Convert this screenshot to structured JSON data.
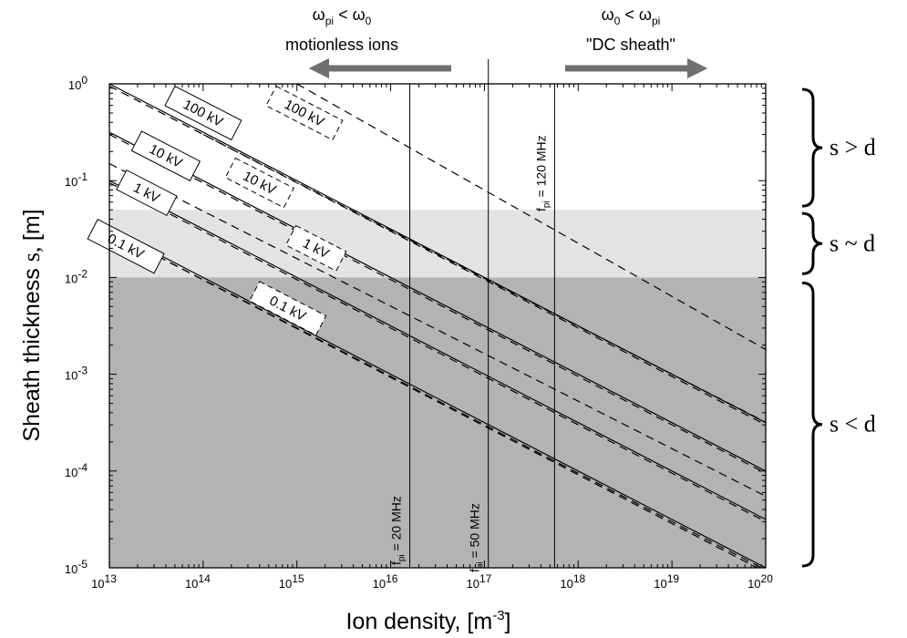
{
  "chart_data": {
    "type": "line",
    "xlabel": "Ion density, [m⁻³]",
    "ylabel": "Sheath thickness",
    "ylabel_symbol": "s,",
    "ylabel_unit": "[m]",
    "x_scale": "log",
    "y_scale": "log",
    "xlim": [
      10000000000000.0,
      1e+20
    ],
    "ylim": [
      1e-05,
      1
    ],
    "x_ticks": [
      "10",
      "10",
      "10",
      "10",
      "10",
      "10",
      "10",
      "10"
    ],
    "x_tick_exponents": [
      "13",
      "14",
      "15",
      "16",
      "17",
      "18",
      "19",
      "20"
    ],
    "y_ticks": [
      "10",
      "10",
      "10",
      "10",
      "10",
      "10"
    ],
    "y_tick_exponents": [
      "0",
      "-1",
      "-2",
      "-3",
      "-4",
      "-5"
    ],
    "regions": [
      {
        "label": "s > d",
        "y_from": 0.05,
        "y_to": 1.0,
        "color": "#ffffff"
      },
      {
        "label": "s ~ d",
        "y_from": 0.01,
        "y_to": 0.05,
        "color": "#e3e3e3"
      },
      {
        "label": "s < d",
        "y_from": 1e-05,
        "y_to": 0.01,
        "color": "#b3b3b3"
      }
    ],
    "series": [
      {
        "name": "100 kV",
        "style": "solid",
        "points": [
          [
            10000000000000.0,
            1.0
          ],
          [
            1e+20,
            0.000316
          ]
        ]
      },
      {
        "name": "10 kV",
        "style": "solid",
        "points": [
          [
            10000000000000.0,
            0.316
          ],
          [
            1e+20,
            0.0001
          ]
        ]
      },
      {
        "name": "1 kV",
        "style": "solid",
        "points": [
          [
            10000000000000.0,
            0.1
          ],
          [
            1e+20,
            3.16e-05
          ]
        ]
      },
      {
        "name": "0.1 kV",
        "style": "solid",
        "points": [
          [
            10000000000000.0,
            0.0316
          ],
          [
            1e+20,
            1e-05
          ]
        ]
      },
      {
        "name": "100 kV",
        "style": "dashed",
        "points": [
          [
            1000000000000000.0,
            1.0
          ],
          [
            1e+20,
            0.0018
          ]
        ]
      },
      {
        "name": "100 kV",
        "style": "dashed",
        "points": [
          [
            10000000000000.0,
            0.95
          ],
          [
            1e+20,
            0.0003
          ]
        ]
      },
      {
        "name": "10 kV",
        "style": "dashed",
        "points": [
          [
            100000000000000.0,
            0.3
          ],
          [
            1e+20,
            0.00032
          ]
        ]
      },
      {
        "name": "10 kV",
        "style": "dashed",
        "points": [
          [
            10000000000000.0,
            0.3
          ],
          [
            1e+20,
            9.5e-05
          ]
        ]
      },
      {
        "name": "1 kV",
        "style": "dashed",
        "points": [
          [
            10000000000000.0,
            0.15
          ],
          [
            1e+20,
            5.5e-05
          ]
        ]
      },
      {
        "name": "1 kV",
        "style": "dashed",
        "points": [
          [
            10000000000000.0,
            0.095
          ],
          [
            1e+20,
            3e-05
          ]
        ]
      },
      {
        "name": "0.1 kV",
        "style": "dashed",
        "points": [
          [
            10000000000000.0,
            0.03
          ],
          [
            1e+20,
            9e-06
          ]
        ]
      },
      {
        "name": "0.1 kV",
        "style": "dashed",
        "points": [
          [
            10000000000000.0,
            0.03
          ],
          [
            1e+20,
            9.5e-06
          ]
        ]
      }
    ],
    "line_labels": [
      {
        "text": "100 kV",
        "border": "solid",
        "x": 100000000000000.0,
        "y": 0.5
      },
      {
        "text": "10 kV",
        "border": "solid",
        "x": 40000000000000.0,
        "y": 0.18
      },
      {
        "text": "1 kV",
        "border": "solid",
        "x": 25000000000000.0,
        "y": 0.075
      },
      {
        "text": "0.1 kV",
        "border": "solid",
        "x": 15000000000000.0,
        "y": 0.021
      },
      {
        "text": "100 kV",
        "border": "dashed",
        "x": 1200000000000000.0,
        "y": 0.5
      },
      {
        "text": "10 kV",
        "border": "dashed",
        "x": 400000000000000.0,
        "y": 0.095
      },
      {
        "text": "1 kV",
        "border": "dashed",
        "x": 1600000000000000.0,
        "y": 0.02
      },
      {
        "text": "0.1 kV",
        "border": "dashed",
        "x": 800000000000000.0,
        "y": 0.0048
      }
    ],
    "vlines": [
      {
        "label": "f",
        "sub": "pi",
        "value": "= 20 MHz",
        "x": 1.6e+16
      },
      {
        "label": "f",
        "sub": "pi",
        "value": "= 50 MHz",
        "x": 1.1e+17
      },
      {
        "label": "f",
        "sub": "pi",
        "value": "= 120 MHz",
        "x": 5.6e+17
      }
    ],
    "top_annotations": [
      {
        "formula_left": "ω",
        "sub_left": "pi",
        "op": "<",
        "formula_right": "ω",
        "sub_right": "0",
        "caption": "motionless ions",
        "arrow": "left"
      },
      {
        "formula_left": "ω",
        "sub_left": "0",
        "op": "<",
        "formula_right": "ω",
        "sub_right": "pi",
        "caption": "\"DC sheath\"",
        "arrow": "right"
      }
    ],
    "region_labels": [
      "s > d",
      "s ~ d",
      "s < d"
    ]
  }
}
